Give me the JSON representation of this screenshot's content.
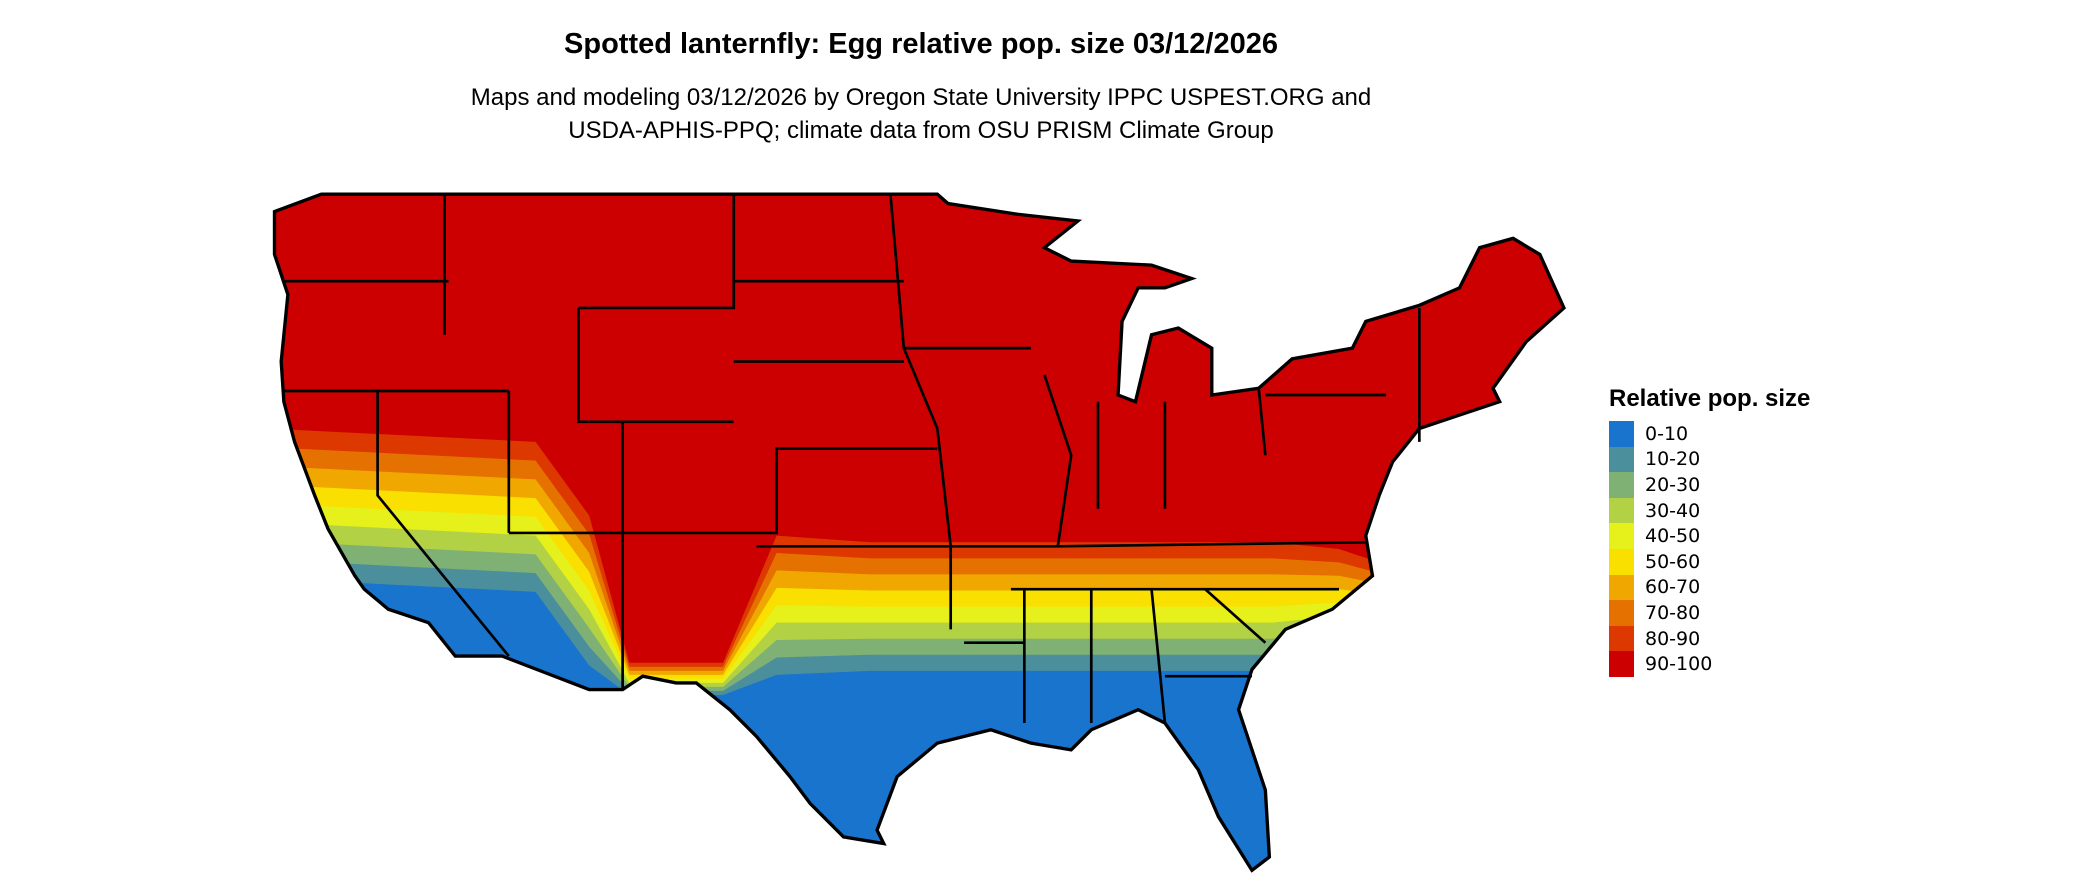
{
  "title": "Spotted lanternfly: Egg relative pop. size 03/12/2026",
  "subtitle_lines": [
    "Maps and modeling 03/12/2026 by Oregon State University IPPC USPEST.ORG and",
    "USDA-APHIS-PPQ; climate data from OSU PRISM Climate Group"
  ],
  "legend": {
    "title": "Relative pop. size",
    "items": [
      {
        "label": "0-10",
        "color": "#1874CD"
      },
      {
        "label": "10-20",
        "color": "#4A8F9B"
      },
      {
        "label": "20-30",
        "color": "#7FB074"
      },
      {
        "label": "30-40",
        "color": "#B3D145"
      },
      {
        "label": "40-50",
        "color": "#E6F01A"
      },
      {
        "label": "50-60",
        "color": "#F9E000"
      },
      {
        "label": "60-70",
        "color": "#F0A800"
      },
      {
        "label": "70-80",
        "color": "#E57200"
      },
      {
        "label": "80-90",
        "color": "#DC3800"
      },
      {
        "label": "90-100",
        "color": "#CC0000"
      }
    ]
  },
  "map": {
    "region": "Contiguous United States",
    "dominant_class": "90-100"
  }
}
